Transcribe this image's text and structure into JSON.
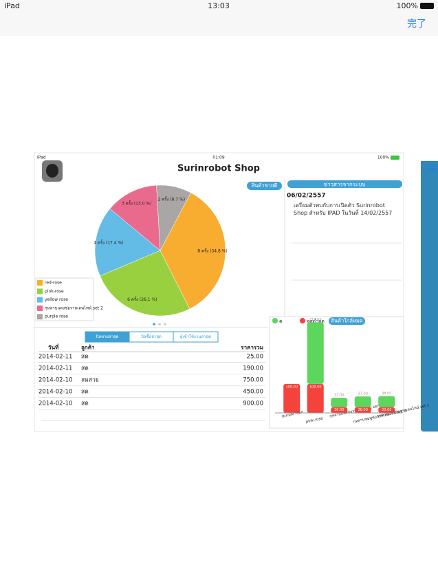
{
  "status_bar": {
    "carrier": "iPad",
    "time": "13:03",
    "battery": "100%"
  },
  "nav": {
    "done": "完了"
  },
  "screenshot": {
    "status_bar": {
      "carrier": "iPad",
      "time": "01:09",
      "battery": "100%"
    },
    "title": "Surinrobot Shop",
    "news": {
      "title": "ข่าวสารจากระบบ",
      "date": "06/02/2557",
      "text": "เตรียมตัวพบกับการเปิดตัว Surinrobot Shop สำหรับ IPAD ในวันที่ 14/02/2557"
    },
    "table": {
      "tabs": [
        "บิลขายล่าสุด",
        "บิลซื้อล่าสุด",
        "ผู้เข้าใช้งานล่าสุด"
      ],
      "headers": [
        "วันที่",
        "ลูกค้า",
        "ราคารวม"
      ],
      "rows": [
        [
          "2014-02-11",
          "สด",
          "25.00"
        ],
        [
          "2014-02-11",
          "สด",
          "190.00"
        ],
        [
          "2014-02-10",
          "สมสวย",
          "750.00"
        ],
        [
          "2014-02-10",
          "สด",
          "450.00"
        ],
        [
          "2014-02-10",
          "สด",
          "900.00"
        ]
      ]
    }
  },
  "chart_data": [
    {
      "type": "pie",
      "title": "สินค้าขายดี",
      "categories": [
        "red-rose",
        "pink-rose",
        "yellow rose",
        "กุหลาบแดงช่อวาลเลนไทน์ set 2",
        "purple rose"
      ],
      "values": [
        8,
        6,
        4,
        3,
        2
      ],
      "value_labels": [
        "8 ครั้ง (34.8 %)",
        "6 ครั้ง (26.1 %)",
        "4 ครั้ง (17.4 %)",
        "3 ครั้ง (13.0 %)",
        "2 ครั้ง (8.7 %)"
      ],
      "colors": [
        "#f8ac30",
        "#99d040",
        "#63bce6",
        "#ea6a8e",
        "#aba6a6"
      ],
      "legend": "bottom-left"
    },
    {
      "type": "stacked-bar",
      "title": "สินค้าใกล้หมด",
      "categories": [
        "purple rose",
        "pink-rose",
        "กุหลาบแดงช่อวาลเลนไทน์ set 2",
        "กุหลาบชมพูช่อวาลเลนไทน์ set 3",
        "กุหลาบขาวช่อวาลเลนไทน์ set 1"
      ],
      "series": [
        {
          "name": "ค",
          "color": "#5cd65c",
          "values": [
            null,
            212,
            32,
            37,
            38
          ],
          "value_labels": [
            null,
            "212.00",
            "32.00",
            "37.00",
            "38.00"
          ]
        },
        {
          "name": "จุดต่ำสุด",
          "color": "#f4433a",
          "values": [
            100,
            100,
            20,
            20,
            20
          ],
          "value_labels": [
            "100.00",
            "100.00",
            "20.00",
            "20.00",
            "20.00"
          ]
        }
      ],
      "ylim": [
        0,
        320
      ]
    }
  ]
}
